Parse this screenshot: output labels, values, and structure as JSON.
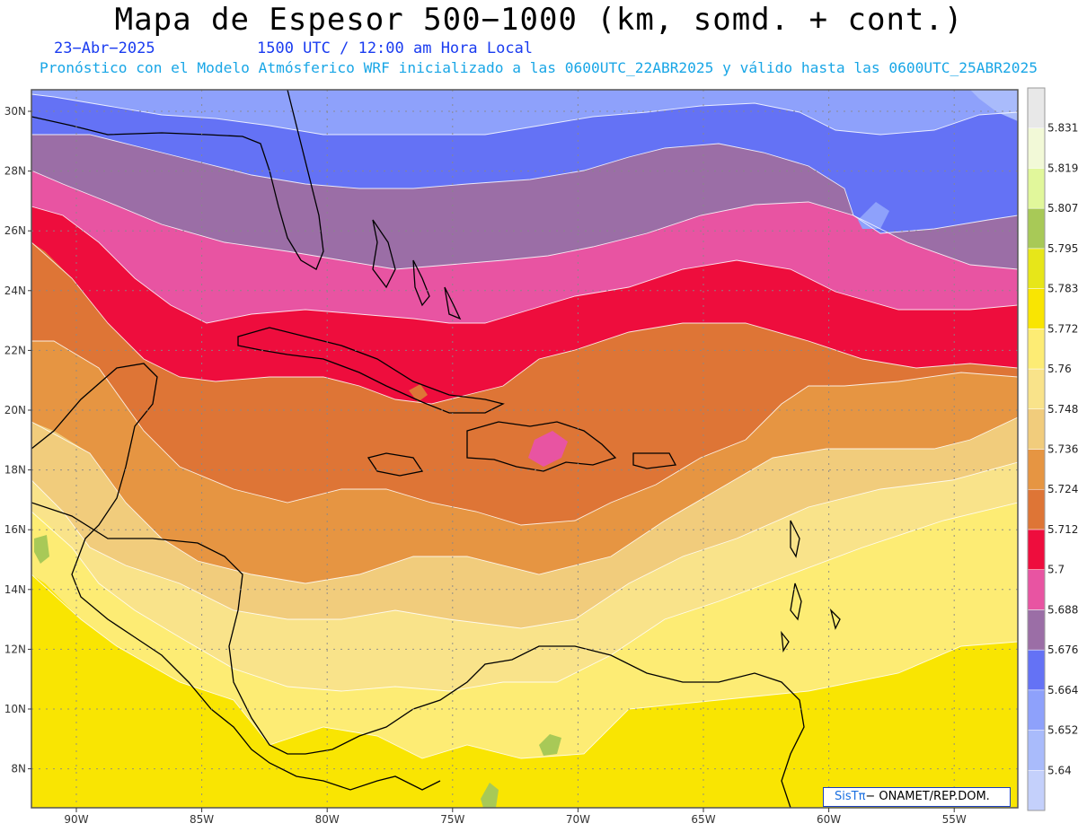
{
  "header": {
    "title": "Mapa de Espesor 500−1000 (km, somd. + cont.)",
    "date": "23−Abr−2025",
    "time": "1500 UTC / 12:00 am Hora Local",
    "model_line": "Pronóstico con el Modelo Atmósferico WRF inicializado a las 0600UTC_22ABR2025 y válido hasta las  0600UTC_25ABR2025"
  },
  "map": {
    "lon_labels": [
      "90W",
      "85W",
      "80W",
      "75W",
      "70W",
      "65W",
      "60W",
      "55W"
    ],
    "lat_labels": [
      "30N",
      "28N",
      "26N",
      "24N",
      "22N",
      "20N",
      "18N",
      "16N",
      "14N",
      "12N",
      "10N",
      "8N"
    ]
  },
  "colorbar": {
    "levels": [
      "5.64",
      "5.652",
      "5.664",
      "5.676",
      "5.688",
      "5.7",
      "5.712",
      "5.724",
      "5.736",
      "5.748",
      "5.76",
      "5.772",
      "5.783",
      "5.795",
      "5.807",
      "5.819",
      "5.831"
    ],
    "colors": [
      "#c4d0fb",
      "#a9bbfb",
      "#8ea1fb",
      "#6472f5",
      "#9b6ea6",
      "#e854a2",
      "#ee0d3d",
      "#de7536",
      "#e69542",
      "#f1cc7c",
      "#f9e38a",
      "#fdec74",
      "#f9e502",
      "#e7e619",
      "#a8c957",
      "#e1f79b",
      "#f2f9d7",
      "#e8e8e8"
    ]
  },
  "credit": {
    "sis": "SisTπ",
    "text": "− ONAMET/REP.DOM."
  }
}
